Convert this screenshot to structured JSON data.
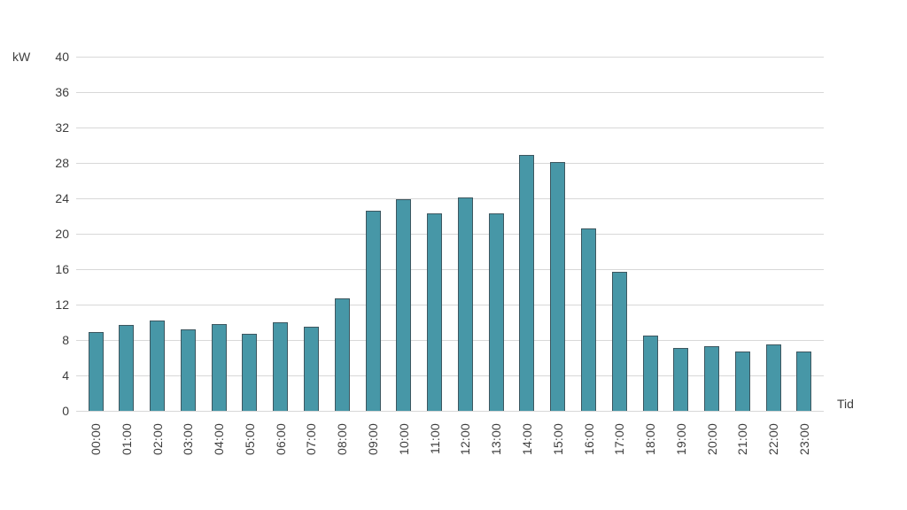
{
  "chart_data": {
    "type": "bar",
    "title": "",
    "ylabel": "kW",
    "xlabel": "Tid",
    "categories": [
      "00:00",
      "01:00",
      "02:00",
      "03:00",
      "04:00",
      "05:00",
      "06:00",
      "07:00",
      "08:00",
      "09:00",
      "10:00",
      "11:00",
      "12:00",
      "13:00",
      "14:00",
      "15:00",
      "16:00",
      "17:00",
      "18:00",
      "19:00",
      "20:00",
      "21:00",
      "22:00",
      "23:00"
    ],
    "values": [
      8.9,
      9.7,
      10.2,
      9.2,
      9.8,
      8.7,
      10.0,
      9.5,
      12.7,
      22.6,
      23.9,
      22.3,
      24.1,
      22.3,
      28.9,
      28.1,
      20.6,
      15.7,
      8.5,
      7.1,
      7.3,
      6.7,
      7.5,
      6.7
    ],
    "ylim": [
      0,
      40
    ],
    "ytick_step": 4,
    "grid": true,
    "legend": false,
    "bar_color": "#4797a7",
    "bar_border_color": "#3d5760",
    "gridline_color": "#d8d8d8",
    "text_color": "#3d3d3d"
  }
}
